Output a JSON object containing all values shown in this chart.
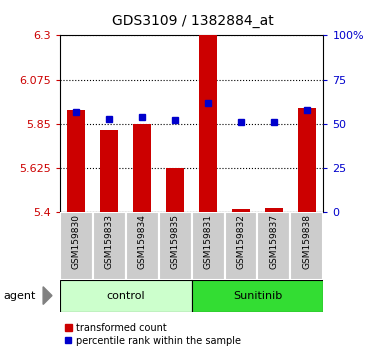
{
  "title": "GDS3109 / 1382884_at",
  "samples": [
    "GSM159830",
    "GSM159833",
    "GSM159834",
    "GSM159835",
    "GSM159831",
    "GSM159832",
    "GSM159837",
    "GSM159838"
  ],
  "groups": [
    "control",
    "control",
    "control",
    "control",
    "Sunitinib",
    "Sunitinib",
    "Sunitinib",
    "Sunitinib"
  ],
  "transformed_count": [
    5.92,
    5.82,
    5.85,
    5.625,
    6.3,
    5.415,
    5.42,
    5.93
  ],
  "percentile_rank": [
    57,
    53,
    54,
    52,
    62,
    51,
    51,
    58
  ],
  "y_min": 5.4,
  "y_max": 6.3,
  "y_ticks": [
    5.4,
    5.625,
    5.85,
    6.075,
    6.3
  ],
  "y_tick_labels": [
    "5.4",
    "5.625",
    "5.85",
    "6.075",
    "6.3"
  ],
  "y2_ticks": [
    0,
    25,
    50,
    75,
    100
  ],
  "y2_tick_labels": [
    "0",
    "25",
    "50",
    "75",
    "100%"
  ],
  "bar_color": "#cc0000",
  "marker_color": "#0000cc",
  "control_color": "#ccffcc",
  "sunitinib_color": "#33dd33",
  "axis_color_left": "#cc0000",
  "axis_color_right": "#0000cc",
  "tick_area_color": "#cccccc",
  "legend_items": [
    "transformed count",
    "percentile rank within the sample"
  ],
  "agent_label": "agent",
  "group_spans": [
    [
      "control",
      0,
      3
    ],
    [
      "Sunitinib",
      4,
      7
    ]
  ]
}
